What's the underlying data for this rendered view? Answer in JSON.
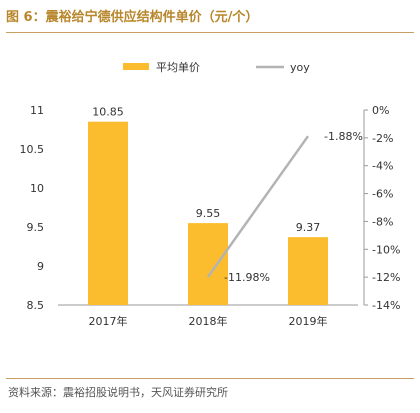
{
  "title": "图 6：震裕给宁德供应结构件单价（元/个）",
  "source": "资料来源：震裕招股说明书，天风证券研究所",
  "chart_data": {
    "type": "bar",
    "categories": [
      "2017年",
      "2018年",
      "2019年"
    ],
    "series": [
      {
        "name": "平均单价",
        "type": "bar",
        "axis": "left",
        "values": [
          10.85,
          9.55,
          9.37
        ],
        "labels": [
          "10.85",
          "9.55",
          "9.37"
        ],
        "color": "#fbbd2e"
      },
      {
        "name": "yoy",
        "type": "line",
        "axis": "right",
        "values": [
          null,
          -11.98,
          -1.88
        ],
        "labels": [
          "",
          "-11.98%",
          "-1.88%"
        ],
        "color": "#b3b3b3"
      }
    ],
    "ylim": [
      8.5,
      11
    ],
    "yticks": [
      "11",
      "10.5",
      "10",
      "9.5",
      "9",
      "8.5"
    ],
    "y2lim": [
      -14,
      0
    ],
    "y2ticks": [
      "0%",
      "-2%",
      "-4%",
      "-6%",
      "-8%",
      "-10%",
      "-12%",
      "-14%"
    ],
    "legend_position": "top",
    "grid": false
  }
}
